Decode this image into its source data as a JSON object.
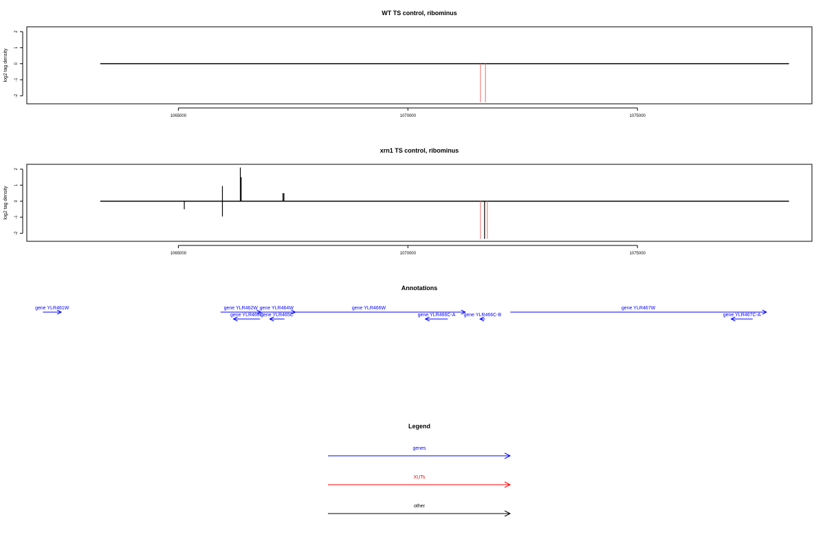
{
  "chart_data": [
    {
      "type": "bar",
      "title": "WT TS control, ribominus",
      "ylabel": "log2 tag density",
      "xlim": [
        1061700,
        1078800
      ],
      "ylim": [
        -2.5,
        2.3
      ],
      "x_ticks": [
        1065000,
        1070000,
        1075000
      ],
      "x_tick_labels": [
        "1065000",
        "1070000",
        "1075000"
      ],
      "y_ticks": [
        -2,
        -1,
        0,
        1,
        2
      ],
      "y_tick_labels": [
        "-2",
        "-1",
        "0",
        "1",
        "2"
      ],
      "baseline": {
        "x_start": 1063300,
        "x_end": 1078300,
        "y": 0
      },
      "series": [
        {
          "color": "#000000",
          "points": []
        },
        {
          "color": "#f08080",
          "points": [
            {
              "x": 1071580,
              "y": -2.4
            },
            {
              "x": 1071690,
              "y": -2.4
            }
          ]
        }
      ]
    },
    {
      "type": "bar",
      "title": "xrn1 TS control, ribominus",
      "ylabel": "log2 tag density",
      "xlim": [
        1061700,
        1078800
      ],
      "ylim": [
        -2.5,
        2.3
      ],
      "x_ticks": [
        1065000,
        1070000,
        1075000
      ],
      "x_tick_labels": [
        "1065000",
        "1070000",
        "1075000"
      ],
      "y_ticks": [
        -2,
        -1,
        0,
        1,
        2
      ],
      "y_tick_labels": [
        "-2",
        "-1",
        "0",
        "1",
        "2"
      ],
      "baseline": {
        "x_start": 1063300,
        "x_end": 1078300,
        "y": 0
      },
      "series": [
        {
          "color": "#000000",
          "points": [
            {
              "x": 1065130,
              "y": -0.5
            },
            {
              "x": 1065960,
              "y": 0.95
            },
            {
              "x": 1065960,
              "y": -0.95
            },
            {
              "x": 1066350,
              "y": 2.1
            },
            {
              "x": 1066370,
              "y": 1.5
            },
            {
              "x": 1067280,
              "y": 0.5
            },
            {
              "x": 1067300,
              "y": 0.5
            },
            {
              "x": 1071670,
              "y": -2.35
            }
          ]
        },
        {
          "color": "#f08080",
          "points": [
            {
              "x": 1071580,
              "y": -2.35
            },
            {
              "x": 1071730,
              "y": -2.35
            }
          ]
        }
      ]
    }
  ],
  "annotations": {
    "title": "Annotations",
    "xlim": [
      1061700,
      1078800
    ],
    "genes": [
      {
        "label": "gene YLR461W",
        "start": 1062050,
        "end": 1062450,
        "strand": "+",
        "row": 0
      },
      {
        "label": "gene YLR462W",
        "start": 1065920,
        "end": 1066800,
        "strand": "+",
        "row": 0
      },
      {
        "label": "gene YLR464W",
        "start": 1066730,
        "end": 1067550,
        "strand": "+",
        "row": 0
      },
      {
        "label": "gene YLR466W",
        "start": 1067050,
        "end": 1071250,
        "strand": "+",
        "row": 0
      },
      {
        "label": "gene YLR467W",
        "start": 1072230,
        "end": 1077810,
        "strand": "+",
        "row": 0
      },
      {
        "label": "gene YLR463C",
        "start": 1066200,
        "end": 1066780,
        "strand": "-",
        "row": 1
      },
      {
        "label": "gene YLR465C",
        "start": 1066990,
        "end": 1067310,
        "strand": "-",
        "row": 1
      },
      {
        "label": "gene YLR466C-A",
        "start": 1070380,
        "end": 1070870,
        "strand": "-",
        "row": 1
      },
      {
        "label": "gene YLR466C-B",
        "start": 1071570,
        "end": 1071680,
        "strand": "-",
        "row": 1
      },
      {
        "label": "gene YLR467C-A",
        "start": 1077040,
        "end": 1077510,
        "strand": "-",
        "row": 1
      }
    ]
  },
  "legend": {
    "title": "Legend",
    "items": [
      {
        "label": "genes",
        "color": "#0000ff"
      },
      {
        "label": "XUTs",
        "color": "#ff0000"
      },
      {
        "label": "other",
        "color": "#000000"
      }
    ]
  }
}
